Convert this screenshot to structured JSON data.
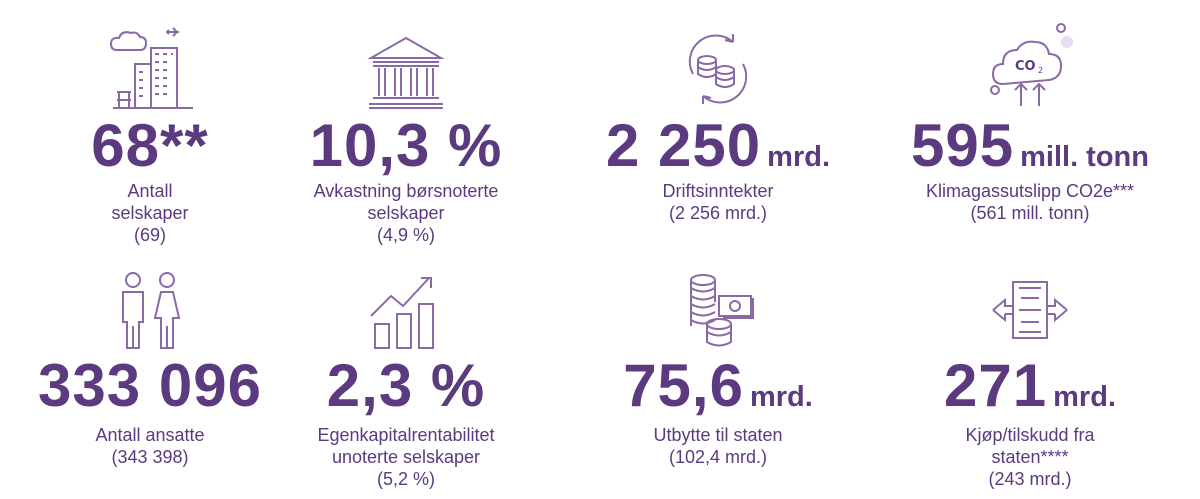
{
  "stats": [
    {
      "value": "68**",
      "unit": "",
      "label_lines": [
        "Antall",
        "selskaper"
      ],
      "prev": "(69)",
      "icon": "city-buildings-icon"
    },
    {
      "value": "10,3 %",
      "unit": "",
      "label_lines": [
        "Avkastning børsnoterte",
        "selskaper"
      ],
      "prev": "(4,9 %)",
      "icon": "bank-building-icon"
    },
    {
      "value": "2 250",
      "unit": "mrd.",
      "label_lines": [
        "Driftsinntekter"
      ],
      "prev": "(2 256 mrd.)",
      "icon": "coins-cycle-icon"
    },
    {
      "value": "595",
      "unit": "mill. tonn",
      "label_lines": [
        "Klimagassutslipp CO2e***"
      ],
      "prev": "(561 mill. tonn)",
      "icon": "co2-cloud-icon"
    },
    {
      "value": "333 096",
      "unit": "",
      "label_lines": [
        "Antall ansatte"
      ],
      "prev": "(343 398)",
      "icon": "people-icon"
    },
    {
      "value": "2,3 %",
      "unit": "",
      "label_lines": [
        "Egenkapitalrentabilitet",
        "unoterte selskaper"
      ],
      "prev": "(5,2 %)",
      "icon": "growth-chart-icon"
    },
    {
      "value": "75,6",
      "unit": "mrd.",
      "label_lines": [
        "Utbytte til staten"
      ],
      "prev": "(102,4 mrd.)",
      "icon": "coins-money-icon"
    },
    {
      "value": "271",
      "unit": "mrd.",
      "label_lines": [
        "Kjøp/tilskudd fra",
        "staten****"
      ],
      "prev": "(243 mrd.)",
      "icon": "money-transfer-icon"
    }
  ],
  "colors": {
    "primary": "#5b3a80",
    "icon_stroke": "#8a6aa6",
    "icon_light": "#e6def0"
  }
}
